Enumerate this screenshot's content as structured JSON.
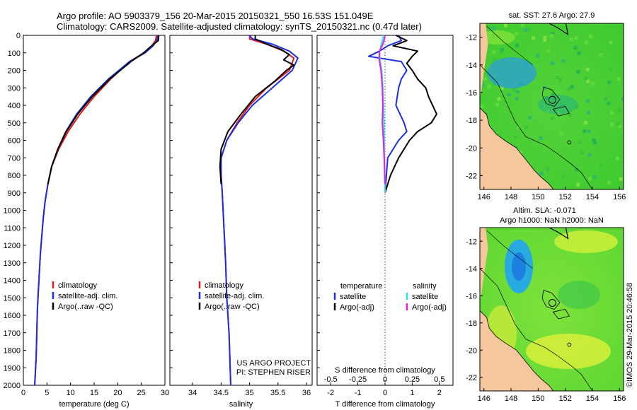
{
  "header": {
    "line1": "Argo profile: AO 5903379_156 20-Mar-2015 20150321_550 16.53S 151.049E",
    "line2": "Climatology: CARS2009. Satellite-adjusted climatology: synTS_20150321.nc (0.47d later)"
  },
  "colors": {
    "climatology": "#e0191b",
    "satellite": "#1c2fe0",
    "argo": "#000000",
    "sat_salinity": "#33e0f0",
    "argo_salinity": "#e021e0",
    "land": "#f5c79c"
  },
  "chart_data": [
    {
      "type": "line",
      "xlabel": "temperature (deg C)",
      "xlim": [
        0,
        30
      ],
      "ylim": [
        0,
        2000
      ],
      "y_inverted": true,
      "xticks": [
        "0",
        "5",
        "10",
        "15",
        "20",
        "25",
        "30"
      ],
      "yticks": [
        "0",
        "100",
        "200",
        "300",
        "400",
        "500",
        "600",
        "700",
        "800",
        "900",
        "1000",
        "1100",
        "1200",
        "1300",
        "1400",
        "1500",
        "1600",
        "1700",
        "1800",
        "1900",
        "2000"
      ],
      "legend": {
        "placement": "bottom-center",
        "entries": [
          "climatology",
          "satellite-adj. clim.",
          "Argo(..raw -QC)"
        ]
      },
      "series": [
        {
          "name": "climatology",
          "color": "#e0191b",
          "x": [
            28.2,
            28.0,
            27.2,
            25.5,
            22.5,
            18.5,
            15.0,
            12.0,
            9.5,
            7.5,
            6.0,
            5.2,
            4.6,
            4.2,
            3.9,
            3.6,
            3.4,
            3.2,
            3.0,
            2.9,
            2.8,
            2.7,
            2.6,
            2.5,
            2.4
          ],
          "y": [
            0,
            30,
            60,
            100,
            150,
            250,
            350,
            450,
            550,
            650,
            750,
            850,
            950,
            1050,
            1150,
            1250,
            1350,
            1450,
            1550,
            1650,
            1750,
            1850,
            1900,
            1950,
            2000
          ]
        },
        {
          "name": "satellite-adj. clim.",
          "color": "#1c2fe0",
          "x": [
            28.5,
            28.3,
            27.5,
            25.8,
            22.5,
            18.0,
            14.3,
            11.3,
            9.0,
            7.3,
            6.0,
            5.2,
            4.6,
            4.2,
            3.9,
            3.6,
            3.4,
            3.2,
            3.0,
            2.9,
            2.8,
            2.7,
            2.6,
            2.5,
            2.4
          ],
          "y": [
            0,
            30,
            60,
            100,
            150,
            250,
            350,
            450,
            550,
            650,
            750,
            850,
            950,
            1050,
            1150,
            1250,
            1350,
            1450,
            1550,
            1650,
            1750,
            1850,
            1900,
            1950,
            2000
          ]
        },
        {
          "name": "Argo(..raw -QC)",
          "color": "#000000",
          "x": [
            28.7,
            28.6,
            27.2,
            25.5,
            22.8,
            18.3,
            14.6,
            11.5,
            9.1,
            7.3,
            6.0,
            5.2
          ],
          "y": [
            0,
            30,
            60,
            100,
            150,
            250,
            350,
            450,
            550,
            650,
            750,
            850
          ]
        }
      ]
    },
    {
      "type": "line",
      "xlabel": "salinity",
      "xlim": [
        33.6,
        36.1
      ],
      "ylim": [
        0,
        2000
      ],
      "y_inverted": true,
      "xticks": [
        "34",
        "34.5",
        "35",
        "35.5",
        "36"
      ],
      "legend": {
        "placement": "bottom-center",
        "entries": [
          "climatology",
          "satellite-adj. clim.",
          "Argo(..raw -QC)"
        ]
      },
      "annotations": [
        "US ARGO PROJECT",
        "PI: STEPHEN RISER"
      ],
      "series": [
        {
          "name": "climatology",
          "color": "#e0191b",
          "x": [
            35.0,
            35.0,
            35.3,
            35.6,
            35.78,
            35.7,
            35.3,
            35.0,
            34.78,
            34.6,
            34.5,
            34.5,
            34.52,
            34.55,
            34.58,
            34.6,
            34.62,
            34.64,
            34.65,
            34.66,
            34.67
          ],
          "y": [
            0,
            20,
            50,
            90,
            130,
            200,
            300,
            400,
            500,
            600,
            700,
            800,
            900,
            1100,
            1300,
            1500,
            1600,
            1700,
            1800,
            1900,
            2000
          ]
        },
        {
          "name": "satellite-adj. clim.",
          "color": "#1c2fe0",
          "x": [
            35.0,
            35.05,
            35.4,
            35.7,
            35.85,
            35.75,
            35.4,
            35.05,
            34.8,
            34.6,
            34.5,
            34.5,
            34.52,
            34.55,
            34.58,
            34.6,
            34.62,
            34.64,
            34.65,
            34.66,
            34.67
          ],
          "y": [
            0,
            20,
            50,
            90,
            130,
            200,
            300,
            400,
            500,
            600,
            700,
            800,
            900,
            1100,
            1300,
            1500,
            1600,
            1700,
            1800,
            1900,
            2000
          ]
        },
        {
          "name": "Argo(..raw -QC)",
          "color": "#000000",
          "x": [
            35.1,
            35.1,
            35.3,
            35.55,
            35.7,
            35.6,
            35.78,
            35.65,
            35.45,
            35.1,
            34.85,
            34.62,
            34.5,
            34.48,
            34.5
          ],
          "y": [
            0,
            20,
            50,
            80,
            110,
            140,
            170,
            200,
            260,
            350,
            450,
            550,
            650,
            750,
            850
          ]
        }
      ]
    },
    {
      "type": "line",
      "xlabel": "T difference from climatology",
      "xlabel2": "S difference from climatology",
      "xlim": [
        -2.5,
        2.5
      ],
      "x2lim": [
        -0.625,
        0.625
      ],
      "ylim": [
        0,
        2000
      ],
      "y_inverted": true,
      "xticks": [
        "-2",
        "-1",
        "0",
        "1",
        "2"
      ],
      "x2ticks": [
        "-0.5",
        "-0.25",
        "0",
        "0.25",
        "0.5"
      ],
      "legend": {
        "placement": "bottom-center",
        "group_titles": [
          "temperature",
          "salinity"
        ],
        "entries": [
          "satellite",
          "Argo(-adj)",
          "satellite",
          "Argo(-adj)"
        ]
      },
      "series": [
        {
          "name": "satellite",
          "group": "temperature",
          "color": "#1c2fe0",
          "x": [
            0.5,
            0.6,
            0.1,
            -0.2,
            -0.6,
            0.6,
            0.8,
            0.6,
            0.5,
            0.4,
            0.7,
            0.8,
            0.5,
            0.3,
            0.1,
            0.05,
            0.0
          ],
          "y": [
            0,
            30,
            60,
            90,
            120,
            150,
            200,
            250,
            300,
            400,
            500,
            550,
            600,
            650,
            700,
            800,
            900
          ]
        },
        {
          "name": "Argo(-adj)",
          "group": "temperature",
          "color": "#000000",
          "x": [
            0.4,
            0.8,
            0.3,
            1.2,
            1.0,
            0.8,
            1.0,
            1.2,
            1.5,
            1.6,
            1.9,
            1.7,
            1.2,
            0.9,
            0.5,
            0.2,
            0.0
          ],
          "y": [
            0,
            30,
            60,
            90,
            120,
            160,
            200,
            250,
            300,
            350,
            450,
            500,
            550,
            600,
            700,
            800,
            900
          ]
        },
        {
          "name": "satellite",
          "group": "salinity",
          "color": "#33e0f0",
          "x": [
            -0.05,
            -0.1,
            -0.15,
            -0.2,
            -0.18,
            -0.12,
            -0.08,
            -0.06,
            -0.04,
            -0.03,
            -0.02,
            -0.01,
            0.0
          ],
          "y": [
            0,
            30,
            60,
            100,
            150,
            200,
            300,
            400,
            500,
            600,
            700,
            800,
            900
          ]
        },
        {
          "name": "Argo(-adj)",
          "group": "salinity",
          "color": "#e021e0",
          "x": [
            0.0,
            -0.02,
            -0.08,
            -0.2,
            -0.22,
            -0.15,
            -0.1,
            -0.08,
            -0.1,
            -0.06,
            -0.03,
            0.0
          ],
          "y": [
            0,
            20,
            50,
            90,
            130,
            200,
            300,
            400,
            500,
            600,
            700,
            850
          ]
        }
      ]
    },
    {
      "type": "heatmap",
      "title": "sat. SST: 27.6 Argo: 27.9",
      "xlim": [
        145.7,
        156.3
      ],
      "ylim": [
        -23.0,
        -11.0
      ],
      "xticks": [
        "146",
        "148",
        "150",
        "152",
        "154",
        "156"
      ],
      "yticks": [
        "-12",
        "-14",
        "-16",
        "-18",
        "-20",
        "-22"
      ],
      "argo_location": {
        "lon": 151.049,
        "lat": -16.53
      }
    },
    {
      "type": "heatmap",
      "title": "Altim. SLA: -0.071",
      "subtitle": "Argo h1000: NaN h2000: NaN",
      "xlim": [
        145.7,
        156.3
      ],
      "ylim": [
        -23.0,
        -11.0
      ],
      "xticks": [
        "146",
        "148",
        "150",
        "152",
        "154",
        "156"
      ],
      "yticks": [
        "-12",
        "-14",
        "-16",
        "-18",
        "-20",
        "-22"
      ],
      "argo_location": {
        "lon": 151.049,
        "lat": -16.53
      }
    }
  ],
  "footer": {
    "credit": "©IMOS 29-Mar-2015 20:46:58"
  }
}
